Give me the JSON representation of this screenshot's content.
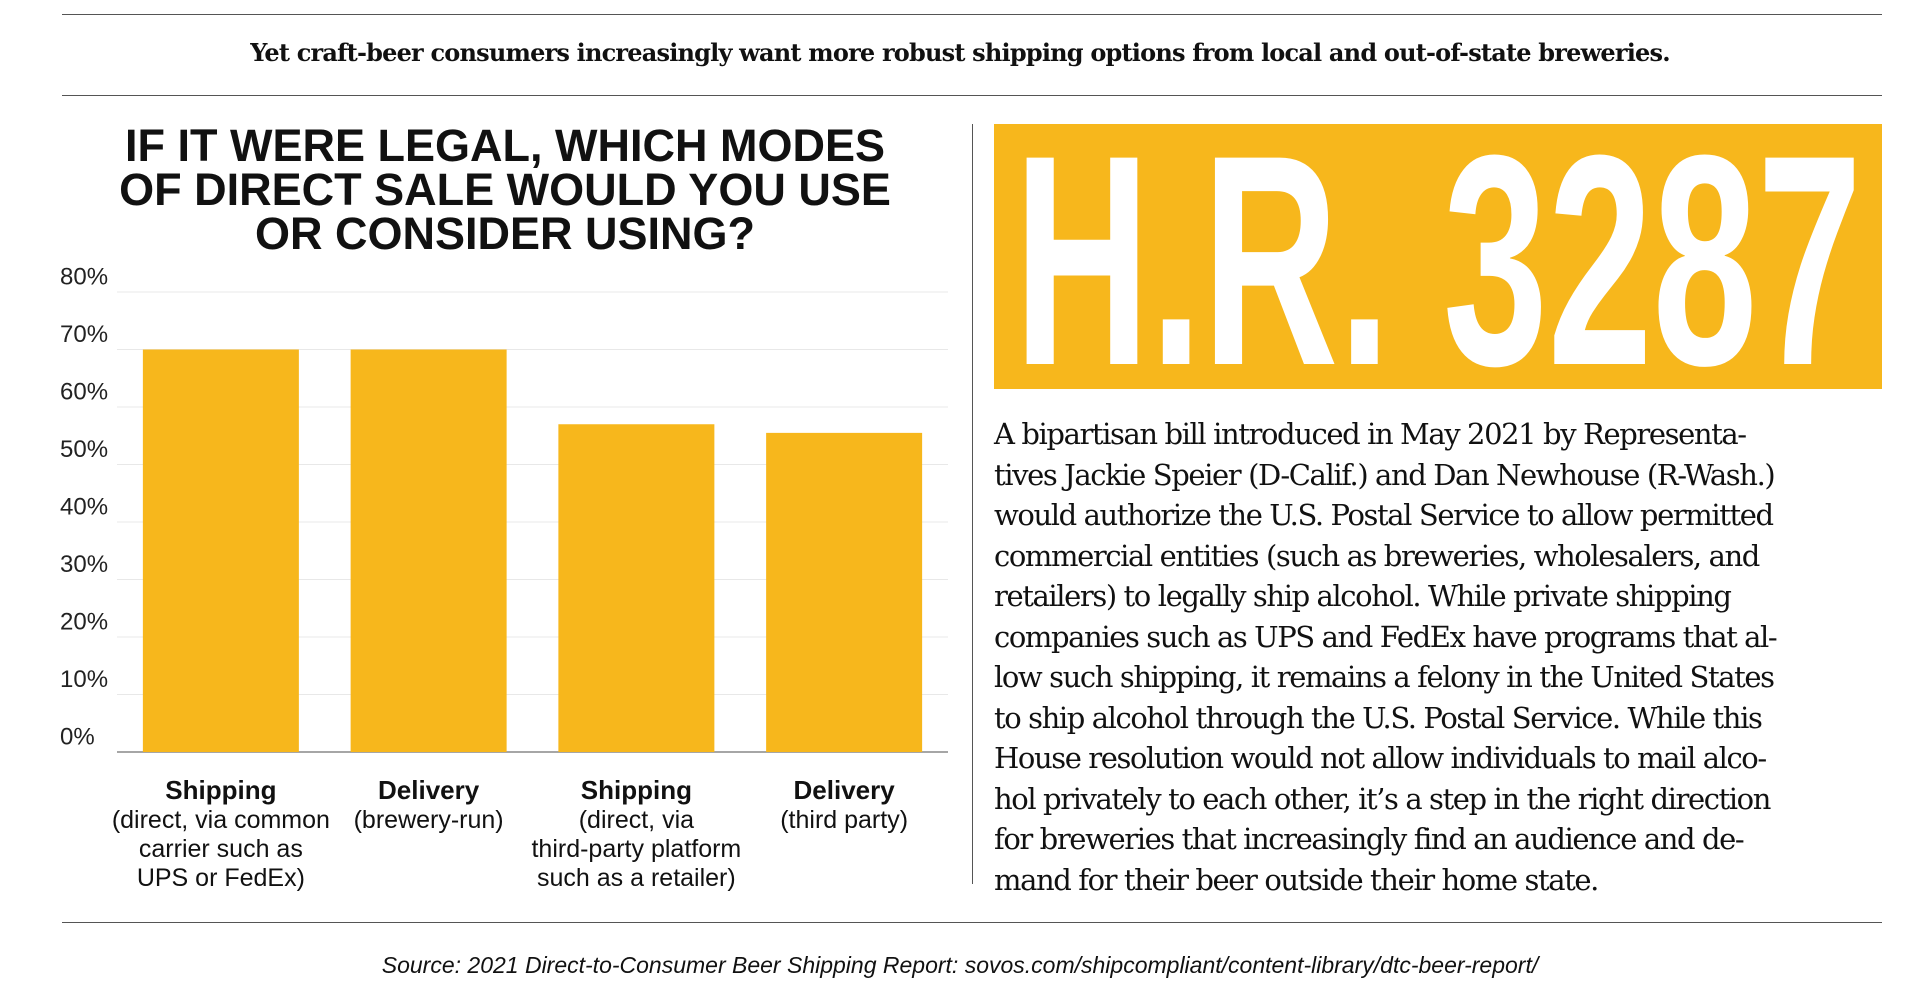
{
  "header": "Yet craft-beer consumers increasingly want more robust shipping options from local and out-of-state breweries.",
  "chart_data": {
    "type": "bar",
    "title": "IF IT WERE LEGAL, WHICH MODES OF DIRECT SALE WOULD YOU USE OR CONSIDER USING?",
    "categories": [
      "Shipping",
      "Delivery",
      "Shipping",
      "Delivery"
    ],
    "category_notes": [
      [
        "(direct, via common",
        "carrier such as",
        "UPS or FedEx)"
      ],
      [
        "(brewery-run)"
      ],
      [
        "(direct, via",
        "third-party platform",
        "such as a retailer)"
      ],
      [
        "(third party)"
      ]
    ],
    "values": [
      70,
      70,
      57,
      55.5
    ],
    "color": "#f7b71c",
    "ylim": [
      0,
      80
    ],
    "yticks": [
      {
        "value": 0,
        "label": "0%"
      },
      {
        "value": 10,
        "label": "10%"
      },
      {
        "value": 20,
        "label": "20%"
      },
      {
        "value": 30,
        "label": "30%"
      },
      {
        "value": 40,
        "label": "40%"
      },
      {
        "value": 50,
        "label": "50%"
      },
      {
        "value": 60,
        "label": "60%"
      },
      {
        "value": 70,
        "label": "70%"
      },
      {
        "value": 80,
        "label": "80%"
      }
    ],
    "grid": true
  },
  "sidebar": {
    "title": "H.R. 3287",
    "body_lines": [
      "A bipartisan bill introduced in May 2021 by Representa-",
      "tives Jackie Speier (D-Calif.) and Dan Newhouse (R-Wash.)",
      "would authorize the U.S. Postal Service to allow permitted",
      "commercial entities (such as breweries, wholesalers, and",
      "retailers) to legally ship alcohol. While private shipping",
      "companies such as UPS and FedEx have programs that al-",
      "low such shipping, it remains a felony in the United States",
      "to ship alcohol through the U.S. Postal Service. While this",
      "House resolution would not allow individuals to mail alco-",
      "hol privately to each other, it’s a step in the right direction",
      "for breweries that increasingly find an audience and de-",
      "mand for their beer outside their home state."
    ]
  },
  "source": "Source: 2021 Direct-to-Consumer Beer Shipping Report: sovos.com/shipcompliant/content-library/dtc-beer-report/"
}
